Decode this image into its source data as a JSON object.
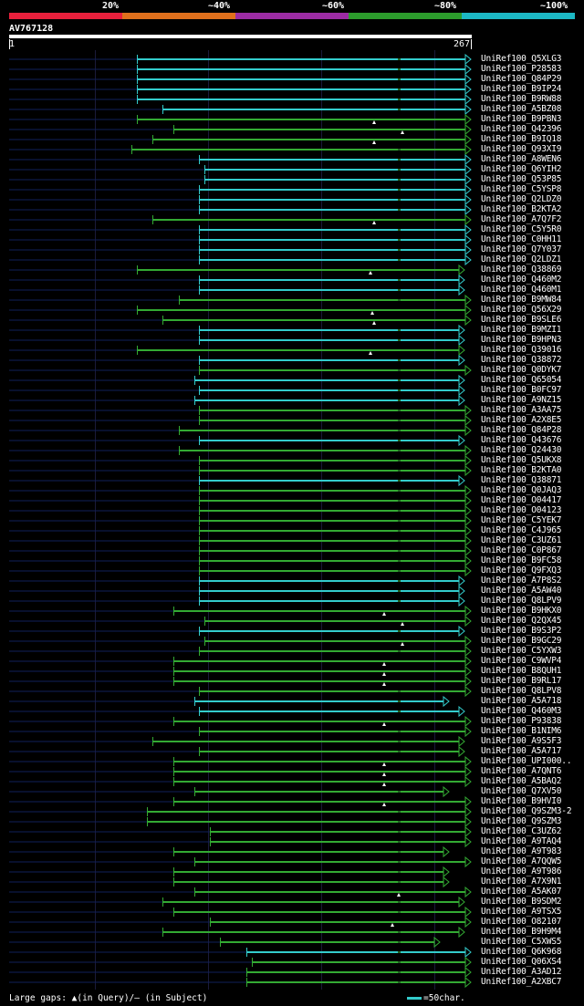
{
  "legend": {
    "colors": [
      "#e8203c",
      "#e0701c",
      "#9c2ca4",
      "#2c9c2c",
      "#1cb8c4"
    ],
    "labels": [
      "20%",
      "~40%",
      "~60%",
      "~80%",
      "~100%"
    ]
  },
  "query": {
    "id": "AV767128",
    "start": "1",
    "end": "267"
  },
  "hits": [
    "UniRef100_Q5XLG3",
    "UniRef100_P28583",
    "UniRef100_Q84P29",
    "UniRef100_B9IP24",
    "UniRef100_B9RW88",
    "UniRef100_A5BZ08",
    "UniRef100_B9PBN3",
    "UniRef100_Q42396",
    "UniRef100_B9IQ18",
    "UniRef100_Q93XI9",
    "UniRef100_A8WEN6",
    "UniRef100_Q6YIH2",
    "UniRef100_Q53P85",
    "UniRef100_C5YSP8",
    "UniRef100_Q2LDZ0",
    "UniRef100_B2KTA2",
    "UniRef100_A7Q7F2",
    "UniRef100_C5Y5R0",
    "UniRef100_C0HH11",
    "UniRef100_Q7Y037",
    "UniRef100_Q2LDZ1",
    "UniRef100_Q38869",
    "UniRef100_Q460M2",
    "UniRef100_Q460M1",
    "UniRef100_B9MW84",
    "UniRef100_Q56X29",
    "UniRef100_B9SLE6",
    "UniRef100_B9MZI1",
    "UniRef100_B9HPN3",
    "UniRef100_Q39016",
    "UniRef100_Q38872",
    "UniRef100_Q0DYK7",
    "UniRef100_Q65054",
    "UniRef100_B0FC97",
    "UniRef100_A9NZ15",
    "UniRef100_A3AA75",
    "UniRef100_A2X8E5",
    "UniRef100_Q84P28",
    "UniRef100_Q43676",
    "UniRef100_Q24430",
    "UniRef100_Q5UKX8",
    "UniRef100_B2KTA0",
    "UniRef100_Q38871",
    "UniRef100_Q0JAQ3",
    "UniRef100_O04417",
    "UniRef100_O04123",
    "UniRef100_C5YEK7",
    "UniRef100_C4J965",
    "UniRef100_C3UZ61",
    "UniRef100_C0P867",
    "UniRef100_B9FC58",
    "UniRef100_Q9FXQ3",
    "UniRef100_A7P8S2",
    "UniRef100_A5AW40",
    "UniRef100_Q8LPV9",
    "UniRef100_B9HKX0",
    "UniRef100_Q2QX45",
    "UniRef100_B9S3P2",
    "UniRef100_B9GC29",
    "UniRef100_C5YXW3",
    "UniRef100_C9WVP4",
    "UniRef100_B8QUH1",
    "UniRef100_B9RL17",
    "UniRef100_Q8LPV8",
    "UniRef100_A5A718",
    "UniRef100_Q460M3",
    "UniRef100_P93838",
    "UniRef100_B1NIM6",
    "UniRef100_A9S5F3",
    "UniRef100_A5A717",
    "UniRef100_UPI000..",
    "UniRef100_A7QNT6",
    "UniRef100_A5BAQ2",
    "UniRef100_Q7XV50",
    "UniRef100_B9HVI0",
    "UniRef100_Q9SZM3-2",
    "UniRef100_Q9SZM3",
    "UniRef100_C3UZ62",
    "UniRef100_A9TAQ4",
    "UniRef100_A9T983",
    "UniRef100_A7QQW5",
    "UniRef100_A9T986",
    "UniRef100_A7X9N1",
    "UniRef100_A5AK07",
    "UniRef100_B9SDM2",
    "UniRef100_A9TSX5",
    "UniRef100_O82107",
    "UniRef100_B9H9M4",
    "UniRef100_C5XWS5",
    "UniRef100_Q6K968",
    "UniRef100_Q06XS4",
    "UniRef100_A3AD12",
    "UniRef100_A2XBC7"
  ],
  "footer": {
    "note": "Large gaps: ▲(in Query)/– (in Subject)",
    "scale": "=50char."
  }
}
